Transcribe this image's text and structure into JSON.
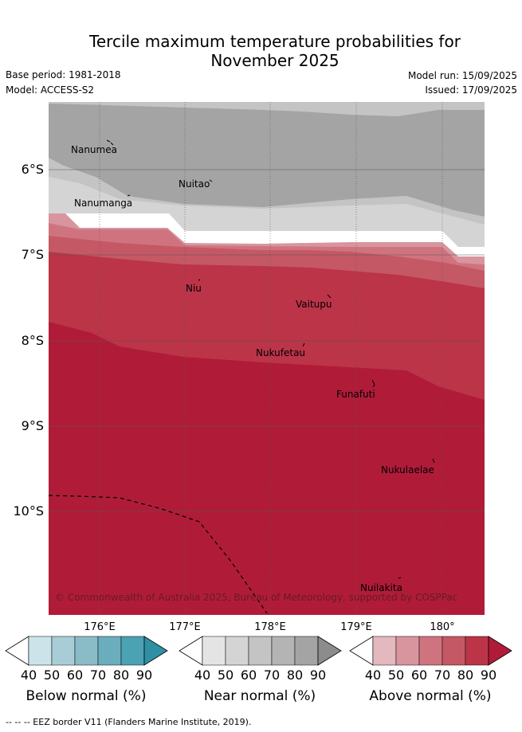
{
  "header": {
    "title_line1": "Tercile maximum temperature probabilities for",
    "title_line2": "November 2025",
    "base_period": "Base period: 1981-2018",
    "model": "Model: ACCESS-S2",
    "model_run": "Model run: 15/09/2025",
    "issued": "Issued: 17/09/2025"
  },
  "map": {
    "lat_labels": [
      "6°S",
      "7°S",
      "8°S",
      "9°S",
      "10°S"
    ],
    "lon_labels": [
      "176°E",
      "177°E",
      "178°E",
      "179°E",
      "180°"
    ],
    "places": [
      {
        "name": "Nanumea"
      },
      {
        "name": "Nuitao"
      },
      {
        "name": "Nanumanga"
      },
      {
        "name": "Niu"
      },
      {
        "name": "Vaitupu"
      },
      {
        "name": "Nukufetau"
      },
      {
        "name": "Funafuti"
      },
      {
        "name": "Nukulaelae"
      },
      {
        "name": "Nuilakita"
      }
    ],
    "credit": "© Commonwealth of Australia 2025, Bureau of Meteorology, supported by COSPPac"
  },
  "legends": [
    {
      "title": "Below normal (%)",
      "ticks": [
        "40",
        "50",
        "60",
        "70",
        "80",
        "90"
      ],
      "colors": [
        "#ffffff",
        "#cde3ea",
        "#a9cdd6",
        "#8abcc8",
        "#6aaebd",
        "#4aa2b2",
        "#2f8fa3"
      ]
    },
    {
      "title": "Near normal (%)",
      "ticks": [
        "40",
        "50",
        "60",
        "70",
        "80",
        "90"
      ],
      "colors": [
        "#ffffff",
        "#e4e4e4",
        "#d4d4d4",
        "#c4c4c4",
        "#b4b4b4",
        "#a4a4a4",
        "#8c8c8c"
      ]
    },
    {
      "title": "Above normal (%)",
      "ticks": [
        "40",
        "50",
        "60",
        "70",
        "80",
        "90"
      ],
      "colors": [
        "#ffffff",
        "#e3b8bf",
        "#d8959e",
        "#cf747f",
        "#c55865",
        "#bc3448",
        "#b01c38"
      ]
    }
  ],
  "footnote": "--  --  -- EEZ border V11 (Flanders Marine Institute, 2019)."
}
